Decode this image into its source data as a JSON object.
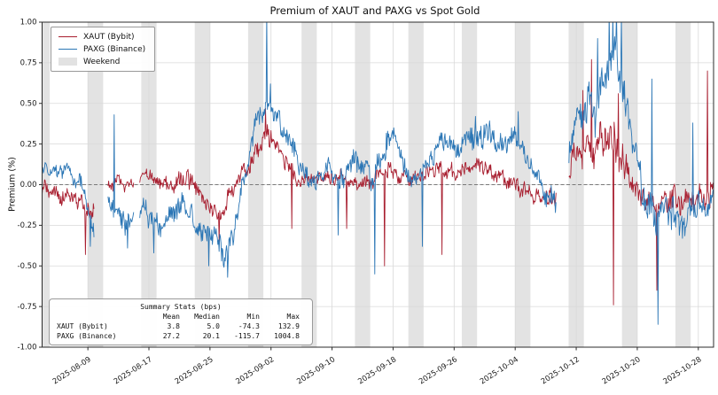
{
  "title": "Premium of XAUT and PAXG vs Spot Gold",
  "ylabel": "Premium (%)",
  "legend": {
    "items": [
      {
        "label": "XAUT (Bybit)",
        "color": "#a81e2f",
        "type": "line"
      },
      {
        "label": "PAXG (Binance)",
        "color": "#2b76b5",
        "type": "line"
      },
      {
        "label": "Weekend",
        "color": "#e2e2e2",
        "type": "patch"
      }
    ]
  },
  "stats_box": {
    "title": "Summary Stats (bps)",
    "columns": [
      "Mean",
      "Median",
      "Min",
      "Max"
    ],
    "rows": [
      {
        "label": "XAUT (Bybit)",
        "values": [
          "3.8",
          "5.0",
          "-74.3",
          "132.9"
        ]
      },
      {
        "label": "PAXG (Binance)",
        "values": [
          "27.2",
          "20.1",
          "-115.7",
          "1004.8"
        ]
      }
    ]
  },
  "chart_data": {
    "type": "line",
    "title": "Premium of XAUT and PAXG vs Spot Gold",
    "ylabel": "Premium (%)",
    "x_start_date": "2025-08-03",
    "x_days": 88,
    "ylim": [
      -1.0,
      1.0
    ],
    "yticks": {
      "values": [
        1.0,
        0.75,
        0.5,
        0.25,
        0.0,
        -0.25,
        -0.5,
        -0.75,
        -1.0
      ],
      "labels": [
        "1.00",
        "0.75",
        "0.50",
        "0.25",
        "0.00",
        "-0.25",
        "-0.50",
        "-0.75",
        "-1.00"
      ]
    },
    "xticks": {
      "days": [
        6,
        14,
        22,
        30,
        38,
        46,
        54,
        62,
        70,
        78,
        86
      ],
      "labels": [
        "2025-08-09",
        "2025-08-17",
        "2025-08-25",
        "2025-09-02",
        "2025-09-10",
        "2025-09-18",
        "2025-09-26",
        "2025-10-04",
        "2025-10-12",
        "2025-10-20",
        "2025-10-28"
      ]
    },
    "grid": true,
    "zero_line": {
      "value": 0.0,
      "style": "dashed",
      "color": "#7a7a7a"
    },
    "weekend_bands_days": [
      [
        0,
        1
      ],
      [
        6,
        8
      ],
      [
        13,
        15
      ],
      [
        20,
        22
      ],
      [
        27,
        29
      ],
      [
        34,
        36
      ],
      [
        41,
        43
      ],
      [
        48,
        50
      ],
      [
        55,
        57
      ],
      [
        62,
        64
      ],
      [
        69,
        71
      ],
      [
        76,
        78
      ],
      [
        83,
        85
      ]
    ],
    "gaps_days": [
      [
        6.8,
        8.6
      ],
      [
        12.0,
        12.8
      ],
      [
        67.4,
        69.0
      ]
    ],
    "summary_stats_bps": {
      "XAUT (Bybit)": {
        "mean": 3.8,
        "median": 5.0,
        "min": -74.3,
        "max": 132.9
      },
      "PAXG (Binance)": {
        "mean": 27.2,
        "median": 20.1,
        "min": -115.7,
        "max": 1004.8
      }
    },
    "series": [
      {
        "name": "XAUT (Bybit)",
        "color": "#a81e2f",
        "seed": 7,
        "trend": [
          [
            0,
            -0.03
          ],
          [
            2,
            -0.05
          ],
          [
            4,
            -0.08
          ],
          [
            5.5,
            -0.12
          ],
          [
            6.3,
            -0.18
          ],
          [
            8.7,
            0.0
          ],
          [
            10,
            0.02
          ],
          [
            11.5,
            0.0
          ],
          [
            13,
            0.04
          ],
          [
            14,
            0.06
          ],
          [
            15,
            0.02
          ],
          [
            17,
            0.0
          ],
          [
            19,
            0.05
          ],
          [
            20.5,
            -0.05
          ],
          [
            22,
            -0.15
          ],
          [
            23,
            -0.2
          ],
          [
            24,
            -0.12
          ],
          [
            25,
            -0.05
          ],
          [
            26,
            0.05
          ],
          [
            27,
            0.12
          ],
          [
            28,
            0.2
          ],
          [
            29,
            0.28
          ],
          [
            30,
            0.3
          ],
          [
            30.7,
            0.25
          ],
          [
            31.5,
            0.18
          ],
          [
            32.5,
            0.1
          ],
          [
            33.5,
            0.02
          ],
          [
            35,
            0.03
          ],
          [
            36.5,
            0.05
          ],
          [
            38,
            0.04
          ],
          [
            39.5,
            0.05
          ],
          [
            41,
            0.02
          ],
          [
            42.5,
            0.0
          ],
          [
            44,
            0.06
          ],
          [
            45.5,
            0.08
          ],
          [
            47,
            0.04
          ],
          [
            48.5,
            0.02
          ],
          [
            50,
            0.05
          ],
          [
            51.5,
            0.1
          ],
          [
            53,
            0.08
          ],
          [
            54.5,
            0.06
          ],
          [
            56,
            0.1
          ],
          [
            57.5,
            0.12
          ],
          [
            59,
            0.08
          ],
          [
            60.5,
            0.04
          ],
          [
            62,
            0.0
          ],
          [
            63.5,
            -0.04
          ],
          [
            65,
            -0.08
          ],
          [
            67.3,
            -0.1
          ],
          [
            69,
            0.1
          ],
          [
            70,
            0.2
          ],
          [
            71,
            0.22
          ],
          [
            72,
            0.18
          ],
          [
            73,
            0.25
          ],
          [
            74,
            0.3
          ],
          [
            75,
            0.25
          ],
          [
            76,
            0.15
          ],
          [
            77,
            0.08
          ],
          [
            78,
            -0.05
          ],
          [
            79,
            -0.1
          ],
          [
            80,
            -0.08
          ],
          [
            81,
            -0.12
          ],
          [
            82,
            -0.1
          ],
          [
            83,
            -0.08
          ],
          [
            84,
            -0.12
          ],
          [
            85,
            -0.1
          ],
          [
            86,
            -0.06
          ],
          [
            87,
            -0.1
          ],
          [
            88,
            -0.05
          ]
        ],
        "amp": [
          [
            0,
            0.07
          ],
          [
            5,
            0.09
          ],
          [
            8.7,
            0.06
          ],
          [
            14,
            0.07
          ],
          [
            22,
            0.08
          ],
          [
            26,
            0.07
          ],
          [
            29,
            0.1
          ],
          [
            31,
            0.08
          ],
          [
            35,
            0.06
          ],
          [
            45,
            0.07
          ],
          [
            55,
            0.07
          ],
          [
            60,
            0.08
          ],
          [
            65,
            0.07
          ],
          [
            69,
            0.12
          ],
          [
            72,
            0.15
          ],
          [
            75,
            0.18
          ],
          [
            77,
            0.14
          ],
          [
            79,
            0.12
          ],
          [
            82,
            0.12
          ],
          [
            85,
            0.1
          ],
          [
            88,
            0.12
          ]
        ],
        "spikes": [
          [
            5.7,
            -0.43
          ],
          [
            23.2,
            -0.35
          ],
          [
            29.3,
            0.47
          ],
          [
            32.7,
            -0.27
          ],
          [
            39.9,
            -0.27
          ],
          [
            44.9,
            -0.5
          ],
          [
            52.4,
            -0.43
          ],
          [
            70.9,
            0.58
          ],
          [
            72.0,
            0.77
          ],
          [
            74.9,
            -0.74
          ],
          [
            75.5,
            0.56
          ],
          [
            80.6,
            -0.65
          ],
          [
            87.2,
            0.7
          ]
        ]
      },
      {
        "name": "PAXG (Binance)",
        "color": "#2b76b5",
        "seed": 13,
        "trend": [
          [
            0,
            0.08
          ],
          [
            1,
            0.1
          ],
          [
            2,
            0.07
          ],
          [
            3,
            0.1
          ],
          [
            4,
            0.05
          ],
          [
            5,
            0.0
          ],
          [
            5.8,
            -0.1
          ],
          [
            6.3,
            -0.22
          ],
          [
            6.8,
            -0.3
          ],
          [
            8.7,
            -0.1
          ],
          [
            9.5,
            -0.15
          ],
          [
            10.5,
            -0.2
          ],
          [
            11.5,
            -0.26
          ],
          [
            12.8,
            -0.2
          ],
          [
            13.5,
            -0.15
          ],
          [
            14.5,
            -0.22
          ],
          [
            15.5,
            -0.26
          ],
          [
            16.5,
            -0.2
          ],
          [
            17.5,
            -0.15
          ],
          [
            18.5,
            -0.12
          ],
          [
            19.5,
            -0.18
          ],
          [
            20.5,
            -0.28
          ],
          [
            21.5,
            -0.35
          ],
          [
            22.5,
            -0.3
          ],
          [
            23.5,
            -0.38
          ],
          [
            24.3,
            -0.44
          ],
          [
            25,
            -0.3
          ],
          [
            25.7,
            -0.15
          ],
          [
            26.3,
            0.0
          ],
          [
            27,
            0.15
          ],
          [
            27.7,
            0.3
          ],
          [
            28.3,
            0.42
          ],
          [
            29,
            0.48
          ],
          [
            29.7,
            0.45
          ],
          [
            30.5,
            0.4
          ],
          [
            31.3,
            0.34
          ],
          [
            32,
            0.3
          ],
          [
            33,
            0.2
          ],
          [
            34,
            0.1
          ],
          [
            34.8,
            0.04
          ],
          [
            35.5,
            0.0
          ],
          [
            36.5,
            0.05
          ],
          [
            37.5,
            0.1
          ],
          [
            38.5,
            0.04
          ],
          [
            39.3,
            0.0
          ],
          [
            40.3,
            0.1
          ],
          [
            41.3,
            0.16
          ],
          [
            42.3,
            0.1
          ],
          [
            43.3,
            0.06
          ],
          [
            44.3,
            0.16
          ],
          [
            45.3,
            0.26
          ],
          [
            46.3,
            0.3
          ],
          [
            47.3,
            0.12
          ],
          [
            48.3,
            0.05
          ],
          [
            49.3,
            0.02
          ],
          [
            50.3,
            0.1
          ],
          [
            51.3,
            0.2
          ],
          [
            52.3,
            0.28
          ],
          [
            53.3,
            0.25
          ],
          [
            54.3,
            0.2
          ],
          [
            55.3,
            0.26
          ],
          [
            56.3,
            0.3
          ],
          [
            57.3,
            0.28
          ],
          [
            58.3,
            0.32
          ],
          [
            59.3,
            0.3
          ],
          [
            60.3,
            0.25
          ],
          [
            61.3,
            0.3
          ],
          [
            62.3,
            0.28
          ],
          [
            63.3,
            0.2
          ],
          [
            64.3,
            0.1
          ],
          [
            65.3,
            0.0
          ],
          [
            66.3,
            -0.08
          ],
          [
            67.3,
            -0.12
          ],
          [
            69,
            0.2
          ],
          [
            69.7,
            0.35
          ],
          [
            70.4,
            0.45
          ],
          [
            71,
            0.4
          ],
          [
            71.7,
            0.5
          ],
          [
            72.4,
            0.45
          ],
          [
            73,
            0.55
          ],
          [
            73.7,
            0.65
          ],
          [
            74.2,
            0.8
          ],
          [
            74.7,
            0.7
          ],
          [
            75.2,
            0.85
          ],
          [
            75.7,
            0.72
          ],
          [
            76.2,
            0.6
          ],
          [
            76.8,
            0.45
          ],
          [
            77.4,
            0.3
          ],
          [
            78,
            0.15
          ],
          [
            78.6,
            0.0
          ],
          [
            79.2,
            -0.1
          ],
          [
            80,
            -0.15
          ],
          [
            81,
            -0.2
          ],
          [
            82,
            -0.15
          ],
          [
            83,
            -0.2
          ],
          [
            84,
            -0.25
          ],
          [
            85,
            -0.15
          ],
          [
            86,
            -0.1
          ],
          [
            87,
            -0.15
          ],
          [
            88,
            -0.1
          ]
        ],
        "amp": [
          [
            0,
            0.05
          ],
          [
            5,
            0.08
          ],
          [
            10,
            0.1
          ],
          [
            15,
            0.1
          ],
          [
            20,
            0.12
          ],
          [
            24,
            0.12
          ],
          [
            27,
            0.1
          ],
          [
            29,
            0.12
          ],
          [
            32,
            0.1
          ],
          [
            35,
            0.08
          ],
          [
            40,
            0.12
          ],
          [
            45,
            0.12
          ],
          [
            50,
            0.1
          ],
          [
            55,
            0.1
          ],
          [
            60,
            0.12
          ],
          [
            65,
            0.1
          ],
          [
            68,
            0.1
          ],
          [
            70,
            0.15
          ],
          [
            73,
            0.2
          ],
          [
            76,
            0.2
          ],
          [
            78,
            0.15
          ],
          [
            80,
            0.18
          ],
          [
            83,
            0.15
          ],
          [
            86,
            0.12
          ],
          [
            88,
            0.15
          ]
        ],
        "spikes": [
          [
            6.3,
            -0.38
          ],
          [
            9.4,
            0.43
          ],
          [
            11.2,
            -0.39
          ],
          [
            14.6,
            -0.42
          ],
          [
            21.8,
            -0.5
          ],
          [
            24.3,
            -0.57
          ],
          [
            29.4,
            1.06
          ],
          [
            29.9,
            0.62
          ],
          [
            38.8,
            -0.31
          ],
          [
            43.6,
            -0.55
          ],
          [
            49.8,
            -0.38
          ],
          [
            56.8,
            0.42
          ],
          [
            62.4,
            0.45
          ],
          [
            72.8,
            0.9
          ],
          [
            74.3,
            1.06
          ],
          [
            74.8,
            1.04
          ],
          [
            75.3,
            1.06
          ],
          [
            75.9,
            1.05
          ],
          [
            79.9,
            0.65
          ],
          [
            80.7,
            -0.86
          ],
          [
            83.9,
            -0.33
          ],
          [
            85.3,
            0.38
          ]
        ]
      }
    ],
    "colors": {
      "band": "#e3e3e3",
      "grid": "#d9d9d9",
      "frame": "#2b2b2b",
      "tick_label": "#1a1a1a"
    }
  }
}
